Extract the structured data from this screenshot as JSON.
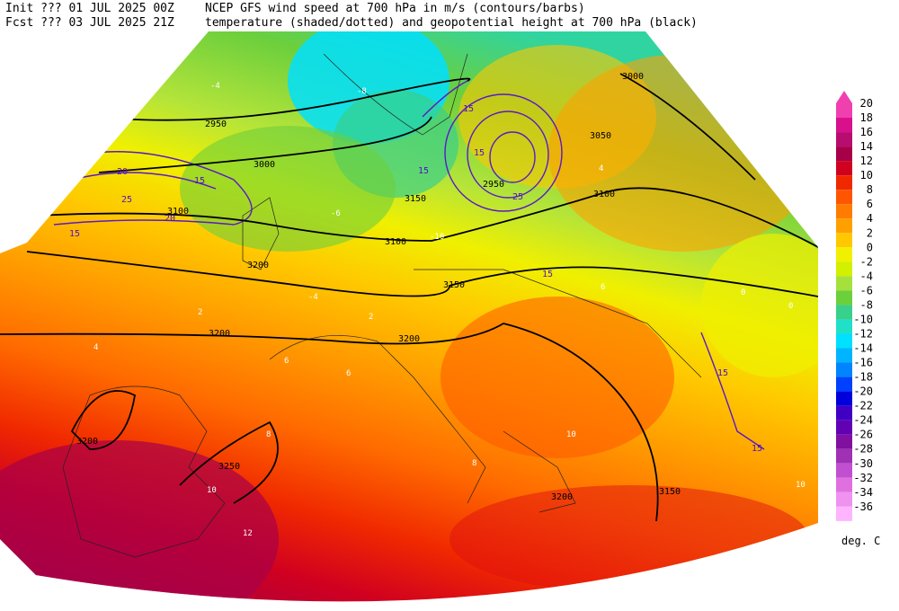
{
  "header": {
    "line1_left": "Init ??? 01 JUL 2025 00Z",
    "line1_right": "NCEP GFS wind speed at 700 hPa in m/s (contours/barbs)",
    "line2_left": "Fcst ??? 03 JUL 2025 21Z",
    "line2_right": "temperature (shaded/dotted) and geopotential height at 700 hPa (black)"
  },
  "height_labels": [
    "2950",
    "3000",
    "3000",
    "3050",
    "3100",
    "3100",
    "3100",
    "3150",
    "3150",
    "3150",
    "3200",
    "3200",
    "3200",
    "3200",
    "3250",
    "3200",
    "2950"
  ],
  "wind_labels": [
    "20",
    "15",
    "25",
    "20",
    "15",
    "15",
    "15",
    "15",
    "25",
    "15",
    "15",
    "15"
  ],
  "temperature_labels": [
    "-4",
    "-8",
    "-6",
    "-10",
    "-4",
    "2",
    "4",
    "2",
    "6",
    "6",
    "8",
    "8",
    "10",
    "12",
    "4",
    "0",
    "0",
    "6",
    "10",
    "10"
  ],
  "colorbar": {
    "unit": "deg. C",
    "levels": [
      20,
      18,
      16,
      14,
      12,
      10,
      8,
      6,
      4,
      2,
      0,
      -2,
      -4,
      -6,
      -8,
      -10,
      -12,
      -14,
      -16,
      -18,
      -20,
      -22,
      -24,
      -26,
      -28,
      -30,
      -32,
      -34,
      -36
    ],
    "colors": [
      "#f040b0",
      "#d8108c",
      "#b80c70",
      "#a80048",
      "#d00020",
      "#f02800",
      "#ff5500",
      "#ff7c00",
      "#ffa000",
      "#ffc800",
      "#f0f000",
      "#d2f000",
      "#a6e03c",
      "#6ccf3c",
      "#38d08a",
      "#20e0c8",
      "#00e0ff",
      "#00b4ff",
      "#0084ff",
      "#0040ff",
      "#0000dc",
      "#4000c4",
      "#6200b4",
      "#8010a0",
      "#a030b4",
      "#c050d0",
      "#e070e0",
      "#f092f0",
      "#ffb4ff"
    ]
  }
}
